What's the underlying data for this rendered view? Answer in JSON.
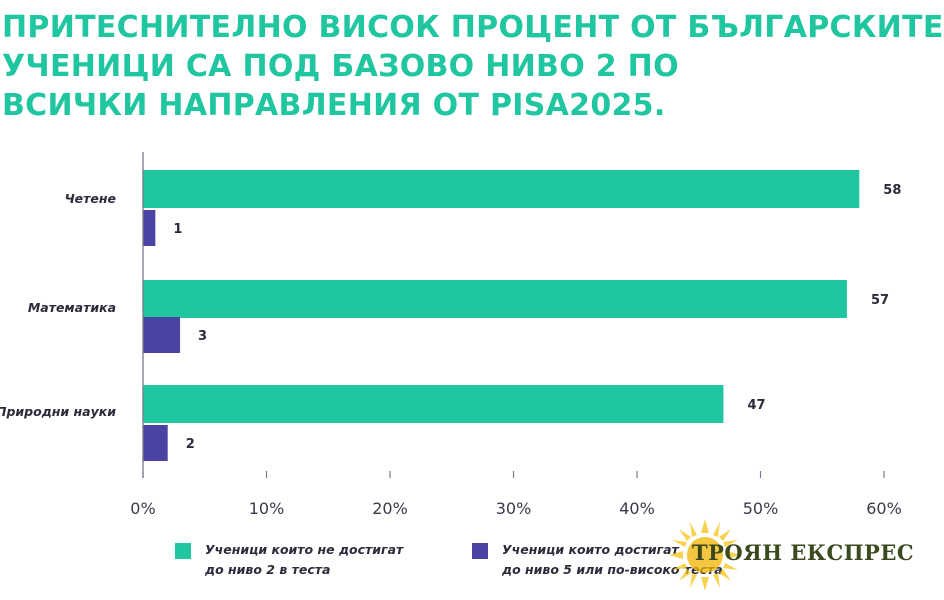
{
  "title_lines": [
    "ПРИТЕСНИТЕЛНО ВИСОК ПРОЦЕНТ ОТ БЪЛГАРСКИТЕ",
    "УЧЕНИЦИ СА ПОД БАЗОВО НИВО 2 ПО",
    "ВСИЧКИ НАПРАВЛЕНИЯ ОТ PISA2025."
  ],
  "colors": {
    "title": "#1fc6a0",
    "series_below_2": "#1fc6a0",
    "series_level_5": "#4a43a3",
    "axis": "#7a7a8a"
  },
  "chart_data": {
    "type": "bar",
    "orientation": "horizontal",
    "categories": [
      "Четене",
      "Математика",
      "Природни науки"
    ],
    "series": [
      {
        "name": "Ученици които не достигат до ниво 2 в теста",
        "values": [
          58,
          57,
          47
        ],
        "labels": [
          "58",
          "57",
          "47"
        ]
      },
      {
        "name": "Ученици които достигат до ниво 5 или по-високо теста",
        "values": [
          1,
          3,
          2
        ],
        "labels": [
          "1",
          "3",
          "2"
        ]
      }
    ],
    "xlim": [
      0,
      60
    ],
    "xticks": [
      "0%",
      "10%",
      "20%",
      "30%",
      "40%",
      "50%",
      "60%"
    ],
    "grid": false,
    "legend": {
      "position": "bottom",
      "items": [
        {
          "lines": [
            "Ученици които не достигат",
            "до ниво 2 в теста"
          ]
        },
        {
          "lines": [
            "Ученици които достигат",
            "до ниво 5 или по-високо теста"
          ]
        }
      ]
    }
  },
  "watermark": {
    "text": "ТРОЯН ЕКСПРЕС"
  }
}
